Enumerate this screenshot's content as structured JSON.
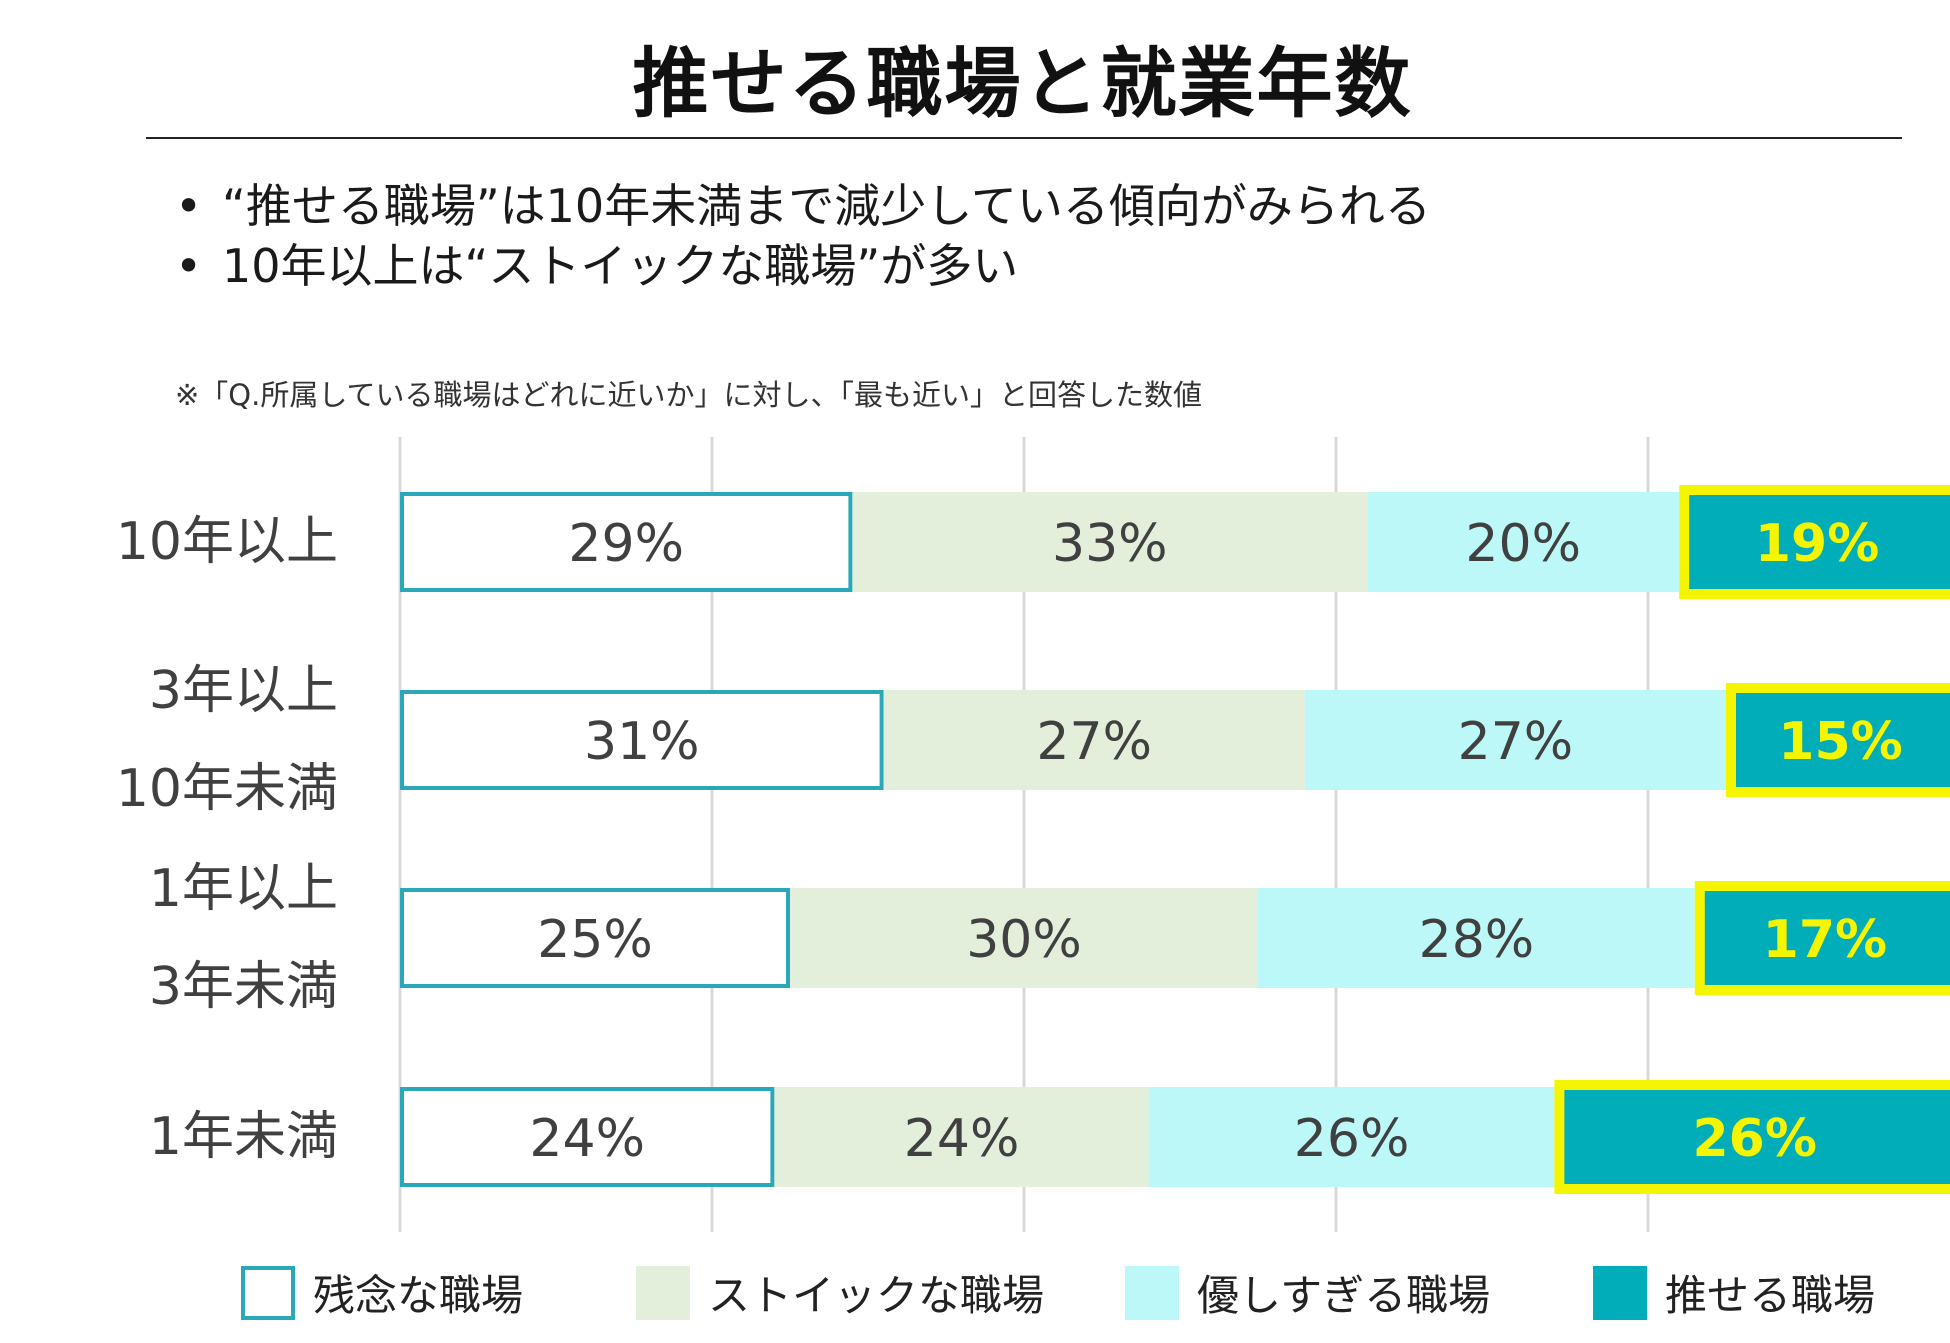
{
  "page": {
    "title": "推せる職場と就業年数",
    "bullets": [
      "“推せる職場”は10年未満まで減少している傾向がみられる",
      "10年以上は“ストイックな職場”が多い"
    ],
    "note": "※「Q.所属している職場はどれに近いか」に対し、「最も近い」と回答した数値"
  },
  "colors": {
    "outline_teal": "#2aa7b8",
    "stoic_fill": "#e3efdb",
    "gentle_fill": "#bdf8f8",
    "recommend_fill": "#00adb8",
    "highlight_yellow": "#f5f500",
    "grid": "#d9d9d9",
    "label_text": "#404040"
  },
  "chart_data": {
    "type": "bar",
    "orientation": "horizontal",
    "stacked": true,
    "xlim": [
      0,
      100
    ],
    "categories": [
      [
        "10年以上"
      ],
      [
        "3年以上",
        "10年未満"
      ],
      [
        "1年以上",
        "3年未満"
      ],
      [
        "1年未満"
      ]
    ],
    "series": [
      {
        "name": "残念な職場",
        "values": [
          29,
          31,
          25,
          24
        ],
        "labels": [
          "29%",
          "31%",
          "25%",
          "24%"
        ]
      },
      {
        "name": "ストイックな職場",
        "values": [
          33,
          27,
          30,
          24
        ],
        "labels": [
          "33%",
          "27%",
          "30%",
          "24%"
        ]
      },
      {
        "name": "優しすぎる職場",
        "values": [
          20,
          27,
          28,
          26
        ],
        "labels": [
          "20%",
          "27%",
          "28%",
          "26%"
        ]
      },
      {
        "name": "推せる職場",
        "values": [
          19,
          15,
          17,
          26
        ],
        "labels": [
          "19%",
          "15%",
          "17%",
          "26%"
        ]
      }
    ],
    "highlight_series": "推せる職場",
    "legend_position": "bottom",
    "grid": true
  }
}
